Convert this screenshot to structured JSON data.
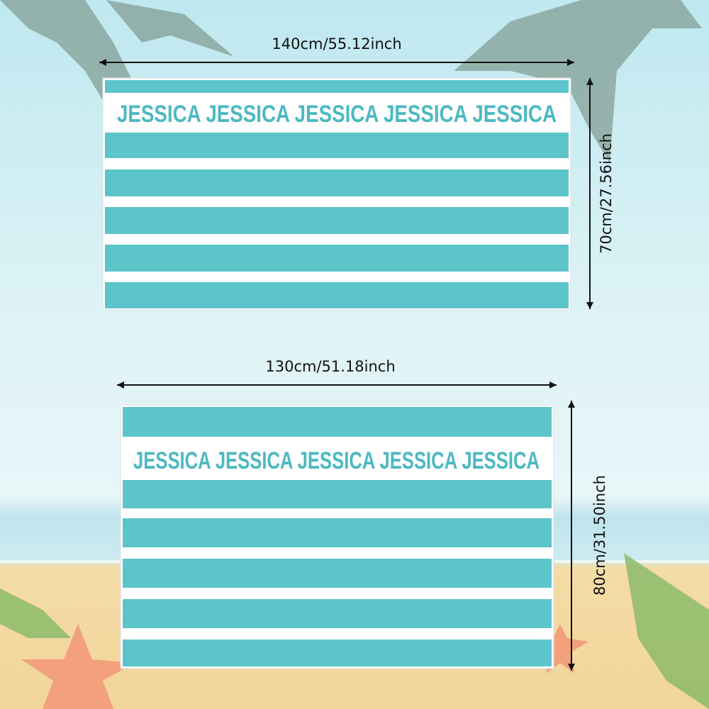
{
  "top_towel": {
    "width_label": "140cm/55.12inch",
    "height_label": "70cm/27.56inch",
    "name_text": "JESSICA JESSICA JESSICA JESSICA JESSICA"
  },
  "bottom_towel": {
    "width_label": "130cm/51.18inch",
    "height_label": "80cm/31.50inch",
    "name_text": "JESSICA JESSICA JESSICA JESSICA JESSICA"
  },
  "colors": {
    "stripe": "#5cc5ca",
    "text": "#4db9c1",
    "towel_white": "#ffffff"
  }
}
